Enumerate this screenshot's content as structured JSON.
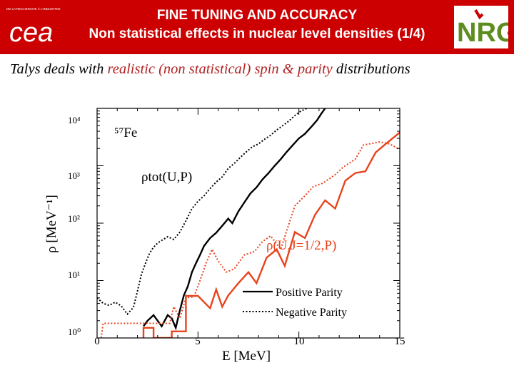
{
  "header": {
    "title_line1": "FINE TUNING AND ACCURACY",
    "title_line2": "Non statistical effects in nuclear level densities (1/4)",
    "logo_left_text": "cea",
    "logo_left_tagline": "DE LA RECHERCHE À L'INDUSTRIE",
    "logo_right_text": "NRG",
    "bg_color": "#cc0000"
  },
  "subtitle": {
    "part1": "Talys deals with ",
    "highlight": "realistic (non statistical) spin & parity",
    "part2": " distributions",
    "highlight_color": "#b22222"
  },
  "chart_data": {
    "type": "line",
    "yscale": "log",
    "xlim": [
      0,
      15
    ],
    "ylim": [
      1,
      10000
    ],
    "xlabel": "E [MeV]",
    "ylabel": "ρ [MeV⁻¹]",
    "x_ticks": [
      "0",
      "5",
      "10",
      "15"
    ],
    "y_ticks": [
      "10⁰",
      "10¹",
      "10²",
      "10³",
      "10⁴"
    ],
    "annotations": {
      "isotope": "⁵⁷Fe",
      "total": "ρtot(U,P)",
      "spin": "ρ(U,J=1/2,P)"
    },
    "legend": {
      "position": "bottom-right",
      "entries": [
        "Positive Parity",
        "Negative Parity"
      ]
    },
    "series": [
      {
        "key": "tot_pos",
        "color": "#000000",
        "style": "solid",
        "points": [
          [
            2.3,
            1.6
          ],
          [
            2.5,
            2.0
          ],
          [
            2.8,
            2.5
          ],
          [
            3.0,
            2.0
          ],
          [
            3.2,
            1.6
          ],
          [
            3.5,
            2.5
          ],
          [
            3.7,
            2.2
          ],
          [
            3.9,
            1.5
          ],
          [
            4.1,
            3.0
          ],
          [
            4.3,
            5.5
          ],
          [
            4.5,
            8.0
          ],
          [
            4.7,
            14
          ],
          [
            4.9,
            20
          ],
          [
            5.1,
            28
          ],
          [
            5.3,
            40
          ],
          [
            5.6,
            55
          ],
          [
            5.9,
            68
          ],
          [
            6.2,
            90
          ],
          [
            6.5,
            120
          ],
          [
            6.7,
            100
          ],
          [
            7.0,
            160
          ],
          [
            7.3,
            230
          ],
          [
            7.6,
            330
          ],
          [
            7.9,
            420
          ],
          [
            8.2,
            580
          ],
          [
            8.5,
            750
          ],
          [
            8.8,
            1000
          ],
          [
            9.1,
            1300
          ],
          [
            9.4,
            1750
          ],
          [
            9.7,
            2300
          ],
          [
            10.0,
            3000
          ],
          [
            10.3,
            3600
          ],
          [
            10.6,
            4700
          ],
          [
            10.9,
            6200
          ],
          [
            11.1,
            8000
          ],
          [
            11.3,
            10000
          ]
        ]
      },
      {
        "key": "tot_neg",
        "color": "#000000",
        "style": "dotted",
        "points": [
          [
            0.0,
            5
          ],
          [
            0.3,
            4
          ],
          [
            0.6,
            3.7
          ],
          [
            0.9,
            4.2
          ],
          [
            1.2,
            3.6
          ],
          [
            1.5,
            2.6
          ],
          [
            1.8,
            3.4
          ],
          [
            2.0,
            6.5
          ],
          [
            2.2,
            13
          ],
          [
            2.4,
            20
          ],
          [
            2.6,
            30
          ],
          [
            2.8,
            38
          ],
          [
            3.0,
            45
          ],
          [
            3.2,
            50
          ],
          [
            3.5,
            58
          ],
          [
            3.8,
            52
          ],
          [
            4.1,
            70
          ],
          [
            4.4,
            110
          ],
          [
            4.7,
            180
          ],
          [
            5.0,
            240
          ],
          [
            5.3,
            300
          ],
          [
            5.6,
            400
          ],
          [
            5.9,
            520
          ],
          [
            6.2,
            640
          ],
          [
            6.5,
            900
          ],
          [
            6.8,
            1100
          ],
          [
            7.1,
            1400
          ],
          [
            7.4,
            1750
          ],
          [
            7.7,
            2150
          ],
          [
            8.0,
            2400
          ],
          [
            8.3,
            2900
          ],
          [
            8.6,
            3400
          ],
          [
            8.9,
            4200
          ],
          [
            9.2,
            5000
          ],
          [
            9.5,
            6000
          ],
          [
            9.8,
            7500
          ],
          [
            10.1,
            9000
          ],
          [
            10.4,
            10000
          ]
        ]
      },
      {
        "key": "spin_pos",
        "color": "#e8431c",
        "style": "solid",
        "points": [
          [
            2.3,
            1
          ],
          [
            2.3,
            1.5
          ],
          [
            2.8,
            1.5
          ],
          [
            2.8,
            1
          ],
          [
            3.7,
            1
          ],
          [
            3.7,
            1.3
          ],
          [
            4.4,
            1.3
          ],
          [
            4.4,
            5.4
          ],
          [
            5.0,
            5.4
          ],
          [
            5.6,
            3.3
          ],
          [
            5.9,
            7
          ],
          [
            6.2,
            3.5
          ],
          [
            6.5,
            5.5
          ],
          [
            7.0,
            9
          ],
          [
            7.5,
            14
          ],
          [
            7.9,
            9
          ],
          [
            8.4,
            25
          ],
          [
            8.9,
            35
          ],
          [
            9.3,
            18
          ],
          [
            9.8,
            70
          ],
          [
            10.3,
            55
          ],
          [
            10.8,
            140
          ],
          [
            11.3,
            250
          ],
          [
            11.8,
            180
          ],
          [
            12.3,
            550
          ],
          [
            12.8,
            750
          ],
          [
            13.3,
            800
          ],
          [
            13.8,
            1700
          ],
          [
            14.3,
            2400
          ],
          [
            15.0,
            3800
          ]
        ]
      },
      {
        "key": "spin_neg",
        "color": "#e8431c",
        "style": "dotted",
        "points": [
          [
            0.2,
            1.0
          ],
          [
            0.3,
            1.8
          ],
          [
            2.3,
            1.8
          ],
          [
            3.6,
            1.8
          ],
          [
            3.8,
            3.5
          ],
          [
            4.1,
            2.2
          ],
          [
            4.4,
            5
          ],
          [
            4.8,
            5.2
          ],
          [
            5.1,
            10
          ],
          [
            5.4,
            20
          ],
          [
            5.7,
            35
          ],
          [
            6.0,
            22
          ],
          [
            6.4,
            14
          ],
          [
            6.8,
            16
          ],
          [
            7.3,
            28
          ],
          [
            7.8,
            32
          ],
          [
            8.2,
            48
          ],
          [
            8.6,
            60
          ],
          [
            9.1,
            35
          ],
          [
            9.5,
            95
          ],
          [
            9.8,
            200
          ],
          [
            10.3,
            300
          ],
          [
            10.7,
            430
          ],
          [
            11.2,
            500
          ],
          [
            11.8,
            700
          ],
          [
            12.2,
            950
          ],
          [
            12.8,
            1300
          ],
          [
            13.2,
            2300
          ],
          [
            14.0,
            2600
          ],
          [
            14.5,
            2400
          ],
          [
            14.9,
            2000
          ]
        ]
      }
    ]
  }
}
